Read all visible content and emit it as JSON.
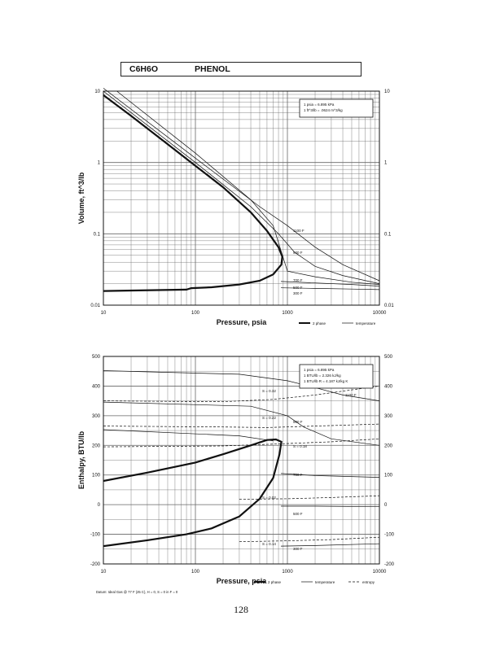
{
  "header": {
    "formula": "C6H6O",
    "name": "PHENOL"
  },
  "page_number": "128",
  "chart_data": [
    {
      "type": "line",
      "log_x": true,
      "log_y": true,
      "xlim": [
        10,
        10000
      ],
      "ylim": [
        0.01,
        10
      ],
      "xlabel": "Pressure, psia",
      "ylabel": "Volume, ft^3/lb",
      "x_ticks": [
        "10",
        "100",
        "1000",
        "10000"
      ],
      "y_ticks_left": [
        "10",
        "1",
        "0.1",
        "0.01"
      ],
      "y_ticks_right": [
        "10",
        "1",
        "0.1",
        "0.01"
      ],
      "conversion_box": [
        "1 psia = 6.895 kPa",
        "1 ft^3/lb = .0624 m^3/kg"
      ],
      "legend": [
        "2 phase",
        "temperature"
      ],
      "series": [
        {
          "name": "2 phase",
          "style": "phase",
          "points": [
            [
              10,
              8.8
            ],
            [
              20,
              4.5
            ],
            [
              50,
              1.8
            ],
            [
              100,
              0.9
            ],
            [
              200,
              0.45
            ],
            [
              400,
              0.2
            ],
            [
              600,
              0.11
            ],
            [
              800,
              0.065
            ],
            [
              880,
              0.048
            ],
            [
              860,
              0.037
            ],
            [
              700,
              0.027
            ],
            [
              500,
              0.022
            ],
            [
              300,
              0.0195
            ],
            [
              150,
              0.0178
            ],
            [
              90,
              0.0173
            ],
            [
              80,
              0.0165
            ],
            [
              10,
              0.0158
            ]
          ]
        },
        {
          "label": "1100 F",
          "style": "temp",
          "points": [
            [
              10,
              11
            ],
            [
              100,
              1.15
            ],
            [
              500,
              0.24
            ],
            [
              1000,
              0.13
            ],
            [
              2000,
              0.065
            ],
            [
              4000,
              0.037
            ],
            [
              10000,
              0.022
            ]
          ]
        },
        {
          "label": "900 F",
          "style": "temp",
          "points": [
            [
              10,
              10
            ],
            [
              100,
              1.0
            ],
            [
              400,
              0.24
            ],
            [
              800,
              0.1
            ],
            [
              1200,
              0.055
            ],
            [
              2000,
              0.035
            ],
            [
              4000,
              0.026
            ],
            [
              10000,
              0.02
            ]
          ]
        },
        {
          "label": "700 F",
          "style": "temp",
          "points": [
            [
              14,
              10
            ],
            [
              100,
              1.35
            ],
            [
              400,
              0.3
            ],
            [
              700,
              0.13
            ],
            [
              1000,
              0.03
            ],
            [
              2000,
              0.025
            ],
            [
              5000,
              0.021
            ],
            [
              10000,
              0.0195
            ]
          ]
        },
        {
          "label": "500 F",
          "style": "temp",
          "points": [
            [
              850,
              0.0215
            ],
            [
              2000,
              0.0205
            ],
            [
              5000,
              0.0195
            ],
            [
              10000,
              0.0185
            ]
          ]
        },
        {
          "label": "300 F",
          "style": "temp",
          "points": [
            [
              850,
              0.0175
            ],
            [
              2000,
              0.0172
            ],
            [
              5000,
              0.0168
            ],
            [
              10000,
              0.0165
            ]
          ]
        }
      ],
      "temperature_labels": [
        "1100 F",
        "900 F",
        "700 F",
        "500 F",
        "300 F"
      ]
    },
    {
      "type": "line",
      "log_x": true,
      "xlim": [
        10,
        10000
      ],
      "ylim": [
        -200,
        500
      ],
      "xlabel": "Pressure, psia",
      "ylabel": "Enthalpy, BTU/lb",
      "x_ticks": [
        "10",
        "100",
        "1000",
        "10000"
      ],
      "y_ticks_left": [
        "500",
        "400",
        "300",
        "200",
        "100",
        "0",
        "-100",
        "-200"
      ],
      "y_ticks_right": [
        "500",
        "400",
        "300",
        "200",
        "100",
        "0",
        "-100",
        "-200"
      ],
      "conversion_box": [
        "1 psia = 6.895 kPa",
        "1 BTU/lb = 2.326 kJ/kg",
        "1 BTU/lb R = 4.187 kJ/kg K"
      ],
      "datum_note": "Datum: Ideal Gas @ 77 F (25 C), H = 0, S = 0 in F = 0",
      "legend": [
        "2 phase",
        "temperature",
        "entropy"
      ],
      "series": [
        {
          "name": "2 phase",
          "style": "phase",
          "points": [
            [
              10,
              80
            ],
            [
              30,
              108
            ],
            [
              100,
              142
            ],
            [
              200,
              170
            ],
            [
              400,
              200
            ],
            [
              600,
              218
            ],
            [
              750,
              220
            ],
            [
              860,
              212
            ],
            [
              820,
              170
            ],
            [
              700,
              90
            ],
            [
              500,
              20
            ],
            [
              300,
              -40
            ],
            [
              150,
              -80
            ],
            [
              80,
              -100
            ],
            [
              30,
              -120
            ],
            [
              10,
              -140
            ]
          ]
        },
        {
          "label": "1100 F",
          "style": "temp",
          "points": [
            [
              10,
              452
            ],
            [
              300,
              440
            ],
            [
              1000,
              418
            ],
            [
              2000,
              395
            ],
            [
              4000,
              370
            ],
            [
              10000,
              350
            ]
          ]
        },
        {
          "label": "900 F",
          "style": "temp",
          "points": [
            [
              10,
              346
            ],
            [
              400,
              332
            ],
            [
              1000,
              300
            ],
            [
              1500,
              262
            ],
            [
              3000,
              222
            ],
            [
              10000,
              200
            ]
          ]
        },
        {
          "label": "700 F",
          "style": "temp",
          "points": [
            [
              10,
              253
            ],
            [
              300,
              232
            ],
            [
              700,
              215
            ]
          ]
        },
        {
          "label": "700 F",
          "style": "temp",
          "points": [
            [
              850,
              105
            ],
            [
              2000,
              98
            ],
            [
              10000,
              92
            ]
          ]
        },
        {
          "label": "500 F",
          "style": "temp",
          "points": [
            [
              850,
              -5
            ],
            [
              2000,
              -5
            ],
            [
              10000,
              -7
            ]
          ]
        },
        {
          "label": "300 F",
          "style": "temp",
          "points": [
            [
              850,
              -140
            ],
            [
              2000,
              -138
            ],
            [
              10000,
              -132
            ]
          ]
        },
        {
          "label": "S = 0.32",
          "style": "entropy",
          "points": [
            [
              10,
              350
            ],
            [
              200,
              347
            ],
            [
              700,
              355
            ],
            [
              2000,
              370
            ],
            [
              10000,
              400
            ]
          ]
        },
        {
          "label": "S = 0.18",
          "style": "entropy",
          "points": [
            [
              10,
              195
            ],
            [
              200,
              198
            ],
            [
              800,
              205
            ],
            [
              3000,
              212
            ],
            [
              10000,
              222
            ]
          ]
        },
        {
          "label": "S = 0.22",
          "style": "entropy",
          "points": [
            [
              10,
              265
            ],
            [
              200,
              262
            ],
            [
              600,
              260
            ],
            [
              2000,
              265
            ],
            [
              10000,
              272
            ]
          ]
        },
        {
          "label": "S = 0.02",
          "style": "entropy",
          "points": [
            [
              300,
              18
            ],
            [
              1000,
              20
            ],
            [
              3000,
              24
            ],
            [
              10000,
              30
            ]
          ]
        },
        {
          "label": "S = 0.14",
          "style": "entropy",
          "points": [
            [
              300,
              -125
            ],
            [
              1000,
              -122
            ],
            [
              3000,
              -118
            ],
            [
              10000,
              -110
            ]
          ]
        }
      ],
      "entropy_labels": [
        "S = 0.32",
        "S = 0.22",
        "S = 0.18",
        "S = 0.02",
        "S = 0.14"
      ],
      "temperature_labels": [
        "1100 F",
        "900 F",
        "700 F",
        "500 F",
        "300 F"
      ]
    }
  ]
}
